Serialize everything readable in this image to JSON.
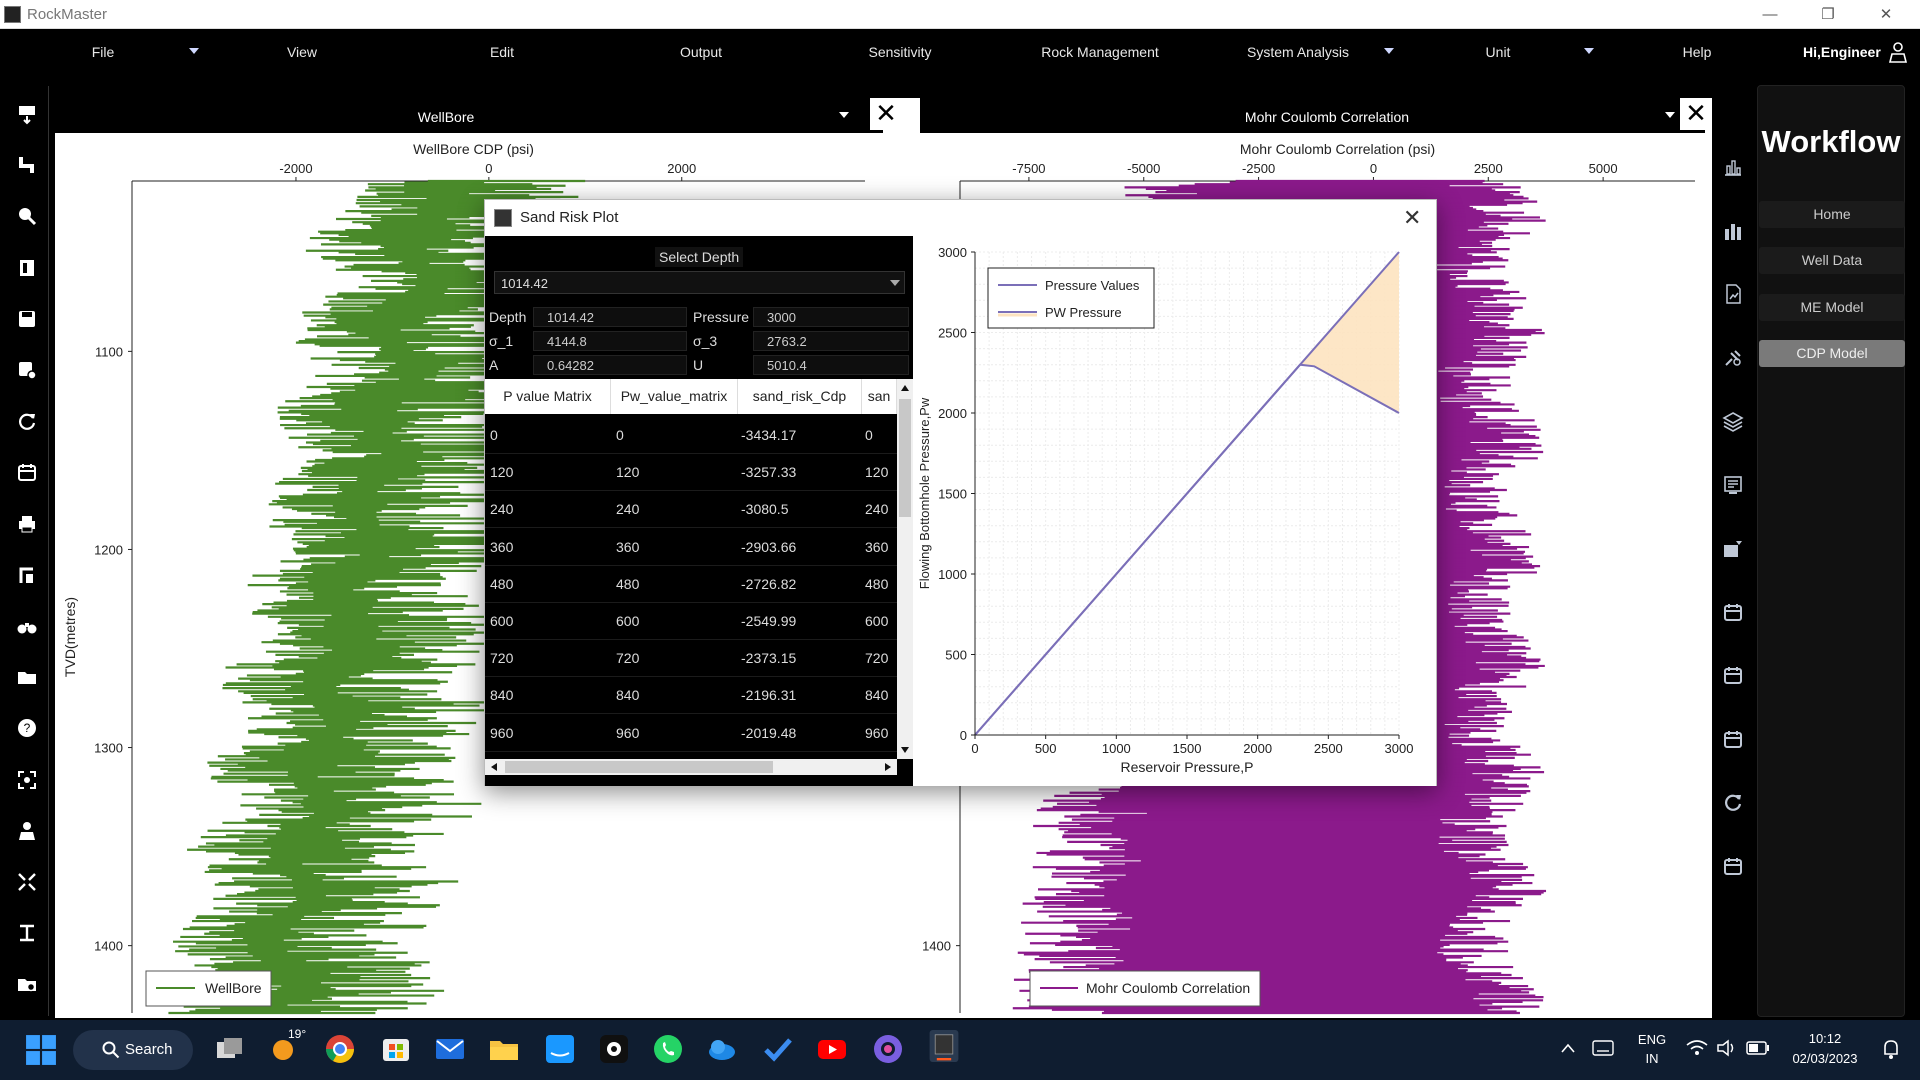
{
  "app": {
    "title": "RockMaster",
    "window_buttons": [
      "—",
      "❐",
      "✕"
    ]
  },
  "menu": {
    "items": [
      "File",
      "View",
      "Edit",
      "Output",
      "Sensitivity",
      "Rock Management",
      "System Analysis",
      "Unit",
      "Help"
    ],
    "greeting": "Hi,Engineer"
  },
  "left_toolbar": {
    "icons": [
      "import-icon",
      "pipe-icon",
      "zoom-icon",
      "page-icon",
      "save-icon",
      "save-as-icon",
      "refresh-icon",
      "calendar-icon",
      "print-icon",
      "fit-icon",
      "binoculars-icon",
      "folder-icon",
      "help-icon",
      "fullscreen-icon",
      "person-icon",
      "shrink-icon",
      "measure-icon",
      "folder-settings-icon"
    ]
  },
  "right_toolbar": {
    "icons": [
      "bar-chart-outline-icon",
      "bar-chart-icon",
      "document-chart-icon",
      "drill-icon",
      "layers-icon",
      "report-icon",
      "export-icon",
      "calendar-icon",
      "calendar-icon",
      "calendar-icon",
      "refresh-icon",
      "calendar-icon"
    ]
  },
  "workflow": {
    "title": "Workflow",
    "buttons": [
      "Home",
      "Well Data",
      "ME Model",
      "CDP Model"
    ],
    "active": "CDP Model"
  },
  "wellbore_panel": {
    "header": "WellBore",
    "chart_data": {
      "type": "line",
      "title": "WellBore CDP (psi)",
      "xlabel": "WellBore CDP (psi)",
      "ylabel": "TVD(metres)",
      "x_ticks": [
        -2000,
        0,
        2000
      ],
      "y_ticks": [
        1100,
        1200,
        1300,
        1400
      ],
      "xlim": [
        -3700,
        3900
      ],
      "ylim": [
        1014,
        1434
      ],
      "series_name": "WellBore",
      "color": "#4a8a2a",
      "depth_values_note_removed": true
    }
  },
  "mohr_panel": {
    "header": "Mohr Coulomb Correlation",
    "chart_data": {
      "type": "line",
      "title": "Mohr Coulomb Correlation (psi)",
      "xlabel": "Mohr Coulomb Correlation (psi)",
      "x_ticks": [
        -7500,
        -5000,
        -2500,
        0,
        2500,
        5000
      ],
      "y_ticks": [
        1400
      ],
      "xlim": [
        -9000,
        7000
      ],
      "ylim": [
        1014,
        1434
      ],
      "series_name": "Mohr Coulomb Correlation",
      "color": "#8b1a8b"
    }
  },
  "dialog": {
    "title": "Sand Risk Plot",
    "select_depth_label": "Select Depth",
    "selected_depth": "1014.42",
    "info": {
      "depth_label": "Depth",
      "depth_value": "1014.42",
      "pressure_label": "Pressure",
      "pressure_value": "3000",
      "sigma1_label": "σ_1",
      "sigma1_value": "4144.8",
      "sigma3_label": "σ_3",
      "sigma3_value": "2763.2",
      "a_label": "A",
      "a_value": "0.64282",
      "u_label": "U",
      "u_value": "5010.4"
    },
    "table": {
      "headers": [
        "P value Matrix",
        "Pw_value_matrix",
        "sand_risk_Cdp",
        "san"
      ],
      "rows": [
        [
          "0",
          "0",
          "-3434.17",
          "0"
        ],
        [
          "120",
          "120",
          "-3257.33",
          "120"
        ],
        [
          "240",
          "240",
          "-3080.5",
          "240"
        ],
        [
          "360",
          "360",
          "-2903.66",
          "360"
        ],
        [
          "480",
          "480",
          "-2726.82",
          "480"
        ],
        [
          "600",
          "600",
          "-2549.99",
          "600"
        ],
        [
          "720",
          "720",
          "-2373.15",
          "720"
        ],
        [
          "840",
          "840",
          "-2196.31",
          "840"
        ],
        [
          "960",
          "960",
          "-2019.48",
          "960"
        ]
      ]
    },
    "chart_data": {
      "type": "line",
      "xlabel": "Reservoir Pressure,P",
      "ylabel": "Flowing Bottomhole Pressure,Pw",
      "xlim": [
        0,
        3000
      ],
      "ylim": [
        0,
        3000
      ],
      "x_ticks": [
        0,
        500,
        1000,
        1500,
        2000,
        2500,
        3000
      ],
      "y_ticks": [
        0,
        500,
        1000,
        1500,
        2000,
        2500,
        3000
      ],
      "grid": true,
      "legend_position": "top-left",
      "series": [
        {
          "name": "Pressure Values",
          "color": "#7b6fb8",
          "x": [
            0,
            2300,
            3000
          ],
          "y": [
            0,
            2300,
            3000
          ]
        },
        {
          "name": "PW Pressure",
          "color": "#7b6fb8",
          "x": [
            0,
            2300,
            2400,
            3000
          ],
          "y": [
            0,
            2300,
            2290,
            2000
          ]
        }
      ],
      "fill_color": "#fde3c0"
    }
  },
  "taskbar": {
    "search_label": "Search",
    "weather": "19°",
    "language_line1": "ENG",
    "language_line2": "IN",
    "time": "10:12",
    "date": "02/03/2023"
  }
}
